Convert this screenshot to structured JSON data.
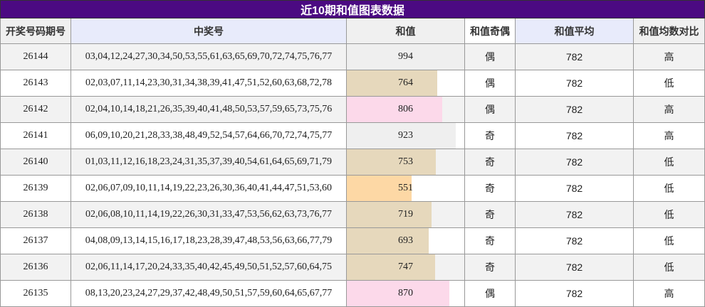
{
  "table": {
    "title": "近10期和值图表数据",
    "headers": [
      "开奖号码期号",
      "中奖号",
      "和值",
      "和值奇偶",
      "和值平均",
      "和值均数对比"
    ],
    "rows": [
      [
        "26144",
        "03,04,12,24,27,30,34,50,53,55,61,63,65,69,70,72,74,75,76,77",
        994,
        "偶",
        782,
        "高"
      ],
      [
        "26143",
        "02,03,07,11,14,23,30,31,34,38,39,41,47,51,52,60,63,68,72,78",
        764,
        "偶",
        782,
        "低"
      ],
      [
        "26142",
        "02,04,10,14,18,21,26,35,39,40,41,48,50,53,57,59,65,73,75,76",
        806,
        "偶",
        782,
        "高"
      ],
      [
        "26141",
        "06,09,10,20,21,28,33,38,48,49,52,54,57,64,66,70,72,74,75,77",
        923,
        "奇",
        782,
        "高"
      ],
      [
        "26140",
        "01,03,11,12,16,18,23,24,31,35,37,39,40,54,61,64,65,69,71,79",
        753,
        "奇",
        782,
        "低"
      ],
      [
        "26139",
        "02,06,07,09,10,11,14,19,22,23,26,30,36,40,41,44,47,51,53,60",
        551,
        "奇",
        782,
        "低"
      ],
      [
        "26138",
        "02,06,08,10,11,14,19,22,26,30,31,33,47,53,56,62,63,73,76,77",
        719,
        "奇",
        782,
        "低"
      ],
      [
        "26137",
        "04,08,09,13,14,15,16,17,18,23,28,39,47,48,53,56,63,66,77,79",
        693,
        "奇",
        782,
        "低"
      ],
      [
        "26136",
        "02,06,11,14,17,20,24,33,35,40,42,45,49,50,51,52,57,60,64,75",
        747,
        "奇",
        782,
        "低"
      ],
      [
        "26135",
        "08,13,20,23,24,27,29,37,42,48,49,50,51,57,59,60,64,65,67,77",
        870,
        "偶",
        782,
        "高"
      ]
    ],
    "sum_colors": [
      "#efefef",
      "#e6d8bc",
      "#fcd9ea",
      "#efefef",
      "#e6d8bc",
      "#fdd8a5",
      "#e6d8bc",
      "#e6d8bc",
      "#e6d8bc",
      "#fcd9ea"
    ]
  }
}
